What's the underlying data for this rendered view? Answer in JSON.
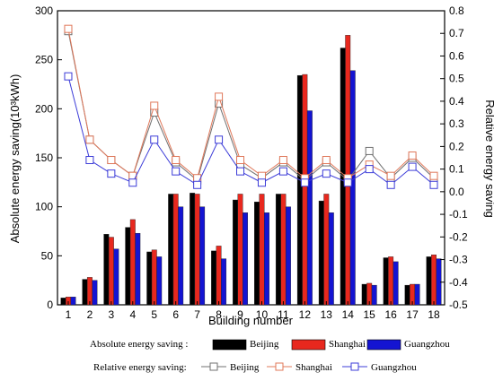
{
  "chart_data": {
    "type": "bar",
    "categories": [
      "1",
      "2",
      "3",
      "4",
      "5",
      "6",
      "7",
      "8",
      "9",
      "10",
      "11",
      "12",
      "13",
      "14",
      "15",
      "16",
      "17",
      "18"
    ],
    "xlabel": "Building number",
    "ylabel_left": "Absolute energy saving(10³kWh)",
    "ylabel_right": "Relative energy saving",
    "ylim_left": [
      0,
      300
    ],
    "ylim_right": [
      -0.5,
      0.8
    ],
    "yticks_left": [
      "0",
      "50",
      "100",
      "150",
      "200",
      "250",
      "300"
    ],
    "yticks_right": [
      "-0.5",
      "-0.4",
      "-0.3",
      "-0.2",
      "-0.1",
      "0.0",
      "0.1",
      "0.2",
      "0.3",
      "0.4",
      "0.5",
      "0.6",
      "0.7",
      "0.8"
    ],
    "grid": false,
    "legend_position": "bottom",
    "bar_series": [
      {
        "name": "Beijing",
        "color": "#000000",
        "values": [
          7,
          26,
          72,
          79,
          54,
          113,
          114,
          55,
          107,
          105,
          113,
          234,
          106,
          262,
          21,
          48,
          20,
          49
        ]
      },
      {
        "name": "Shanghai",
        "color": "#e8281e",
        "values": [
          8,
          28,
          69,
          87,
          56,
          113,
          113,
          60,
          113,
          113,
          113,
          235,
          113,
          275,
          22,
          49,
          21,
          51
        ]
      },
      {
        "name": "Guangzhou",
        "color": "#1414d2",
        "values": [
          8,
          25,
          57,
          73,
          49,
          100,
          100,
          47,
          94,
          94,
          100,
          198,
          94,
          239,
          20,
          44,
          21,
          47
        ]
      }
    ],
    "line_series": [
      {
        "name": "Beijing",
        "color": "#707070",
        "values": [
          0.71,
          0.23,
          0.14,
          0.07,
          0.35,
          0.13,
          0.05,
          0.39,
          0.12,
          0.06,
          0.13,
          0.05,
          0.13,
          0.05,
          0.18,
          0.06,
          0.15,
          0.06
        ]
      },
      {
        "name": "Shanghai",
        "color": "#e0785a",
        "values": [
          0.72,
          0.23,
          0.14,
          0.07,
          0.38,
          0.14,
          0.06,
          0.42,
          0.14,
          0.07,
          0.14,
          0.06,
          0.14,
          0.06,
          0.12,
          0.07,
          0.16,
          0.07
        ]
      },
      {
        "name": "Guangzhou",
        "color": "#3c3cd8",
        "values": [
          0.51,
          0.14,
          0.08,
          0.04,
          0.23,
          0.09,
          0.03,
          0.23,
          0.09,
          0.04,
          0.09,
          0.04,
          0.08,
          0.04,
          0.1,
          0.03,
          0.11,
          0.03
        ]
      }
    ]
  },
  "legend": {
    "absolute_label": "Absolute energy saving :",
    "relative_label": "Relative energy saving:",
    "beijing": "Beijing",
    "shanghai": "Shanghai",
    "guangzhou": "Guangzhou"
  }
}
